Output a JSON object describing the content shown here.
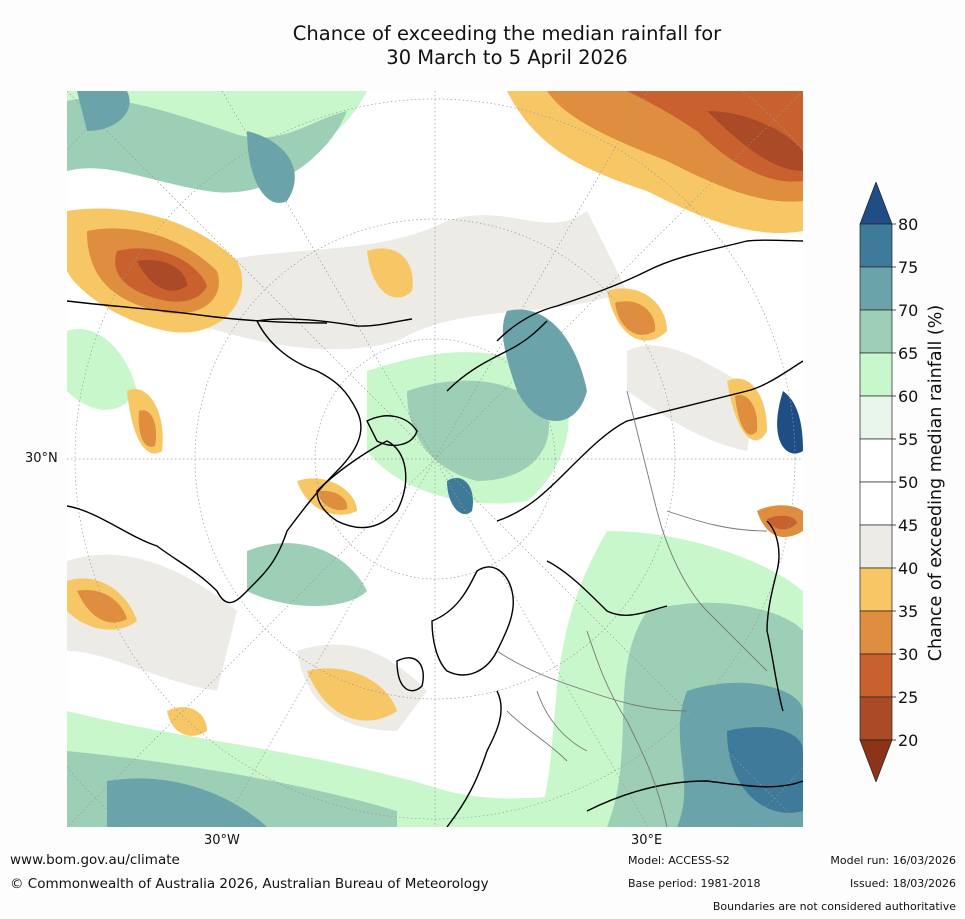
{
  "title": {
    "line1": "Chance of exceeding the median rainfall for",
    "line2": "30 March to 5 April 2026"
  },
  "map": {
    "projection": "North Polar Stereographic",
    "lat_label": "30°N",
    "lon_labels": {
      "west": "30°W",
      "east": "30°E"
    }
  },
  "legend": {
    "title": "Chance of exceeding median rainfall (%)",
    "ticks": [
      "80",
      "75",
      "70",
      "65",
      "60",
      "55",
      "50",
      "45",
      "40",
      "35",
      "30",
      "25",
      "20"
    ],
    "colors": {
      "over80": "#1f4e86",
      "75-80": "#3e7a99",
      "70-75": "#6aa4aa",
      "65-70": "#9ccfb6",
      "60-65": "#c9f7cc",
      "55-60": "#e8f5e9",
      "50-55": "#ffffff",
      "45-50": "#ffffff",
      "40-45": "#ecebe6",
      "35-40": "#f8c765",
      "30-35": "#df8d3e",
      "25-30": "#c8612d",
      "20-25": "#ab4a26",
      "under20": "#8c3418"
    }
  },
  "footer": {
    "website": "www.bom.gov.au/climate",
    "copyright": "© Commonwealth of Australia 2026, Australian Bureau of Meteorology",
    "model": "Model: ACCESS-S2",
    "base_period": "Base period: 1981-2018",
    "model_run": "Model run: 16/03/2026",
    "issued": "Issued: 18/03/2026",
    "disclaimer": "Boundaries are not considered authoritative"
  }
}
